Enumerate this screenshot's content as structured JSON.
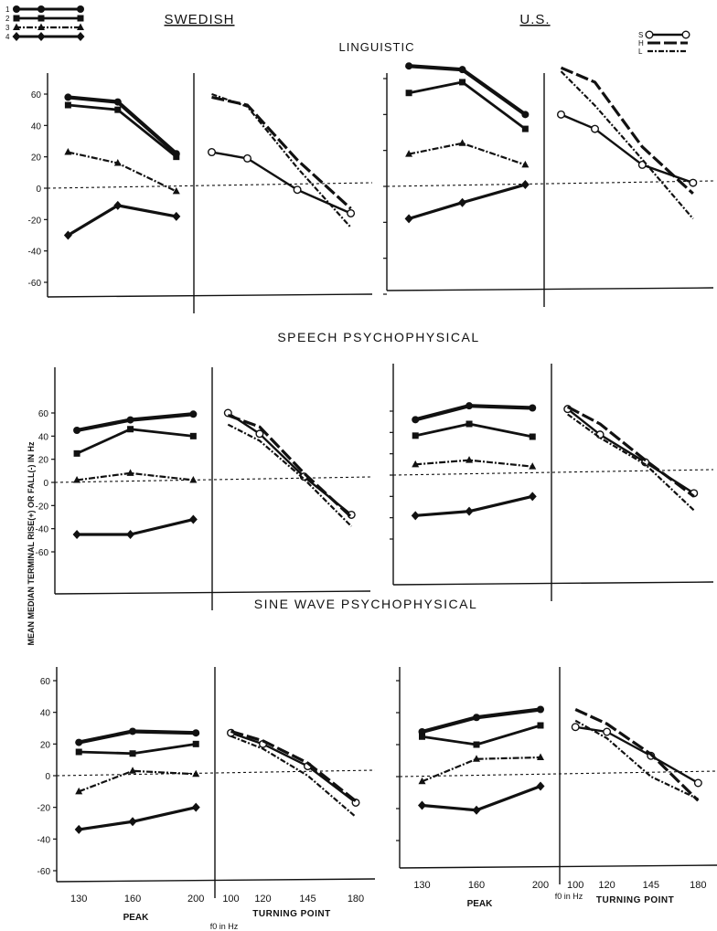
{
  "figure": {
    "col_titles": [
      "SWEDISH",
      "U.S."
    ],
    "row_titles": [
      "LINGUISTIC",
      "SPEECH PSYCHOPHYSICAL",
      "SINE WAVE PSYCHOPHYSICAL"
    ],
    "ylabel": "MEAN MEDIAN TERMINAL RISE(+) OR FALL(-) IN Hz",
    "peak_label": "PEAK",
    "turning_label": "TURNING POINT",
    "f0_label": "f0 in Hz",
    "yticks": [
      60,
      40,
      20,
      0,
      -20,
      -40,
      -60
    ],
    "peak_ticks": [
      "130",
      "160",
      "200"
    ],
    "turning_ticks": [
      "100",
      "120",
      "145",
      "180"
    ],
    "legend_swedish": [
      {
        "label": "1",
        "marker": "circle"
      },
      {
        "label": "2",
        "marker": "square"
      },
      {
        "label": "3",
        "marker": "triangle"
      },
      {
        "label": "4",
        "marker": "diamond"
      }
    ],
    "legend_us": [
      {
        "label": "S",
        "marker": "open-circle"
      },
      {
        "label": "H",
        "marker": "line"
      },
      {
        "label": "L",
        "marker": "dash-dot"
      }
    ]
  },
  "chart_data": [
    {
      "type": "line",
      "title": "LINGUISTIC",
      "column": "SWEDISH",
      "ylim": [
        -60,
        60
      ],
      "left": {
        "x": [
          130,
          160,
          200
        ],
        "series": [
          {
            "name": "1",
            "marker": "circle",
            "values": [
              58,
              55,
              22
            ]
          },
          {
            "name": "2",
            "marker": "square",
            "values": [
              53,
              50,
              20
            ]
          },
          {
            "name": "3",
            "marker": "triangle",
            "values": [
              23,
              16,
              -2
            ]
          },
          {
            "name": "4",
            "marker": "diamond",
            "values": [
              -30,
              -11,
              -18
            ]
          }
        ]
      },
      "right": {
        "x": [
          100,
          120,
          145,
          180
        ],
        "series": [
          {
            "name": "S",
            "values": [
              23,
              19,
              -1,
              -16
            ]
          },
          {
            "name": "H",
            "values": [
              58,
              53,
              18,
              -13
            ]
          },
          {
            "name": "L",
            "values": [
              60,
              52,
              13,
              -25
            ]
          }
        ]
      }
    },
    {
      "type": "line",
      "title": "LINGUISTIC",
      "column": "U.S.",
      "ylim": [
        -60,
        60
      ],
      "left": {
        "x": [
          130,
          160,
          200
        ],
        "series": [
          {
            "name": "1",
            "marker": "circle",
            "values": [
              67,
              65,
              40
            ]
          },
          {
            "name": "2",
            "marker": "square",
            "values": [
              52,
              58,
              32
            ]
          },
          {
            "name": "3",
            "marker": "triangle",
            "values": [
              18,
              24,
              12
            ]
          },
          {
            "name": "4",
            "marker": "diamond",
            "values": [
              -18,
              -9,
              1
            ]
          }
        ]
      },
      "right": {
        "x": [
          100,
          120,
          145,
          180
        ],
        "series": [
          {
            "name": "S",
            "values": [
              40,
              32,
              12,
              2
            ]
          },
          {
            "name": "H",
            "values": [
              66,
              58,
              22,
              -4
            ]
          },
          {
            "name": "L",
            "values": [
              64,
              45,
              15,
              -18
            ]
          }
        ]
      }
    },
    {
      "type": "line",
      "title": "SPEECH PSYCHOPHYSICAL",
      "column": "SWEDISH",
      "ylim": [
        -60,
        60
      ],
      "left": {
        "x": [
          130,
          160,
          200
        ],
        "series": [
          {
            "name": "1",
            "marker": "circle",
            "values": [
              45,
              54,
              59
            ]
          },
          {
            "name": "2",
            "marker": "square",
            "values": [
              25,
              46,
              40
            ]
          },
          {
            "name": "3",
            "marker": "triangle",
            "values": [
              2,
              8,
              2
            ]
          },
          {
            "name": "4",
            "marker": "diamond",
            "values": [
              -45,
              -45,
              -32
            ]
          }
        ]
      },
      "right": {
        "x": [
          100,
          120,
          145,
          180
        ],
        "series": [
          {
            "name": "S",
            "values": [
              60,
              42,
              5,
              -28
            ]
          },
          {
            "name": "H",
            "values": [
              58,
              48,
              8,
              -30
            ]
          },
          {
            "name": "L",
            "values": [
              50,
              36,
              3,
              -38
            ]
          }
        ]
      }
    },
    {
      "type": "line",
      "title": "SPEECH PSYCHOPHYSICAL",
      "column": "U.S.",
      "ylim": [
        -60,
        60
      ],
      "left": {
        "x": [
          130,
          160,
          200
        ],
        "series": [
          {
            "name": "1",
            "marker": "circle",
            "values": [
              52,
              65,
              63
            ]
          },
          {
            "name": "2",
            "marker": "square",
            "values": [
              37,
              48,
              36
            ]
          },
          {
            "name": "3",
            "marker": "triangle",
            "values": [
              10,
              14,
              8
            ]
          },
          {
            "name": "4",
            "marker": "diamond",
            "values": [
              -38,
              -34,
              -20
            ]
          }
        ]
      },
      "right": {
        "x": [
          100,
          120,
          145,
          180
        ],
        "series": [
          {
            "name": "S",
            "values": [
              62,
              38,
              12,
              -17
            ]
          },
          {
            "name": "H",
            "values": [
              64,
              48,
              14,
              -20
            ]
          },
          {
            "name": "L",
            "values": [
              57,
              35,
              10,
              -33
            ]
          }
        ]
      }
    },
    {
      "type": "line",
      "title": "SINE WAVE PSYCHOPHYSICAL",
      "column": "SWEDISH",
      "ylim": [
        -60,
        60
      ],
      "left": {
        "x": [
          130,
          160,
          200
        ],
        "series": [
          {
            "name": "1",
            "marker": "circle",
            "values": [
              21,
              28,
              27
            ]
          },
          {
            "name": "2",
            "marker": "square",
            "values": [
              15,
              14,
              20
            ]
          },
          {
            "name": "3",
            "marker": "triangle",
            "values": [
              -10,
              3,
              1
            ]
          },
          {
            "name": "4",
            "marker": "diamond",
            "values": [
              -34,
              -29,
              -20
            ]
          }
        ]
      },
      "right": {
        "x": [
          100,
          120,
          145,
          180
        ],
        "series": [
          {
            "name": "S",
            "values": [
              27,
              20,
              6,
              -17
            ]
          },
          {
            "name": "H",
            "values": [
              28,
              22,
              8,
              -16
            ]
          },
          {
            "name": "L",
            "values": [
              25,
              17,
              0,
              -26
            ]
          }
        ]
      }
    },
    {
      "type": "line",
      "title": "SINE WAVE PSYCHOPHYSICAL",
      "column": "U.S.",
      "ylim": [
        -60,
        60
      ],
      "left": {
        "x": [
          130,
          160,
          200
        ],
        "series": [
          {
            "name": "1",
            "marker": "circle",
            "values": [
              28,
              37,
              42
            ]
          },
          {
            "name": "2",
            "marker": "square",
            "values": [
              25,
              20,
              32
            ]
          },
          {
            "name": "3",
            "marker": "triangle",
            "values": [
              -3,
              11,
              12
            ]
          },
          {
            "name": "4",
            "marker": "diamond",
            "values": [
              -18,
              -21,
              -6
            ]
          }
        ]
      },
      "right": {
        "x": [
          100,
          120,
          145,
          180
        ],
        "series": [
          {
            "name": "S",
            "values": [
              31,
              28,
              13,
              -4
            ]
          },
          {
            "name": "H",
            "values": [
              42,
              33,
              14,
              -15
            ]
          },
          {
            "name": "L",
            "values": [
              35,
              24,
              0,
              -14
            ]
          }
        ]
      }
    }
  ]
}
